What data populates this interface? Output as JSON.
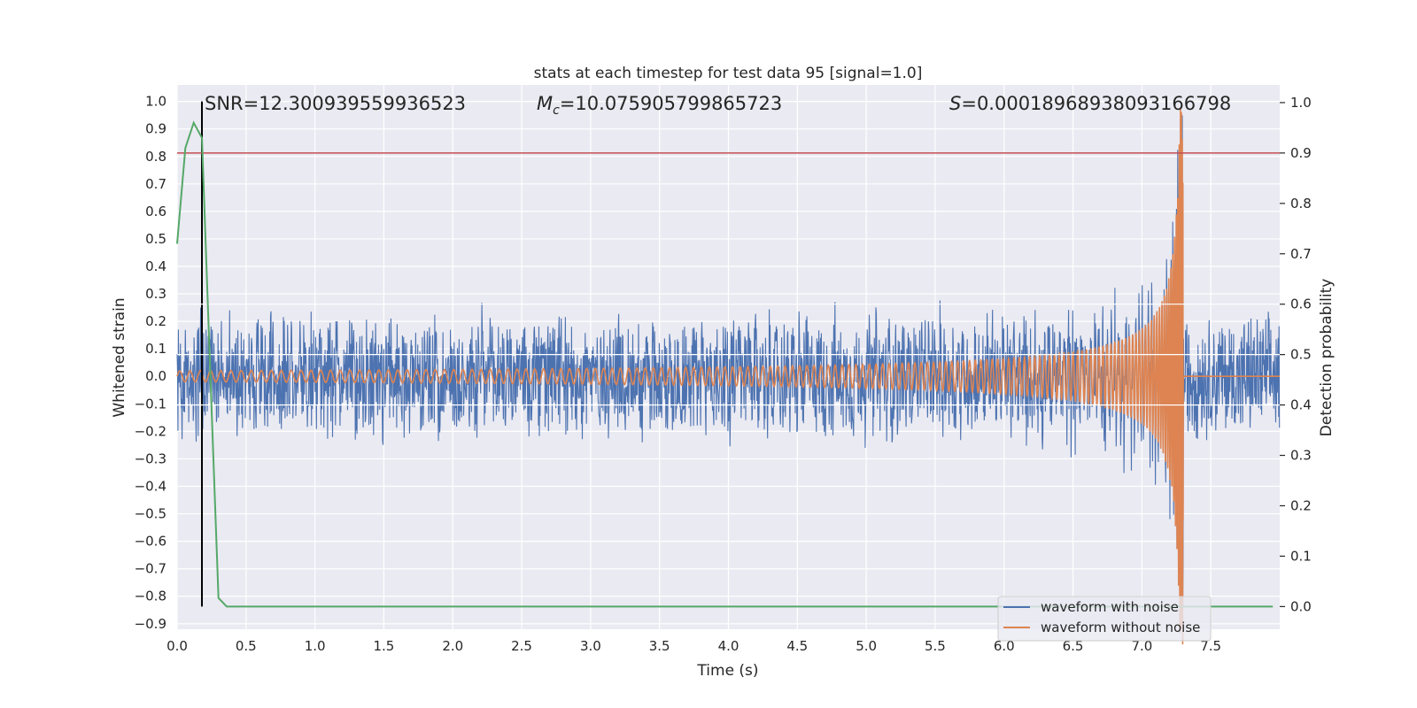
{
  "chart_data": {
    "type": "line",
    "title": "stats at each timestep for test data 95 [signal=1.0]",
    "xlabel": "Time (s)",
    "ylabel": "Whitened strain",
    "y2label": "Detection probability",
    "xlim": [
      0.0,
      8.0
    ],
    "ylim": [
      -0.92,
      1.06
    ],
    "y2lim": [
      -0.045,
      1.035
    ],
    "xticks": [
      "0.0",
      "0.5",
      "1.0",
      "1.5",
      "2.0",
      "2.5",
      "3.0",
      "3.5",
      "4.0",
      "4.5",
      "5.0",
      "5.5",
      "6.0",
      "6.5",
      "7.0",
      "7.5"
    ],
    "xtick_values": [
      0.0,
      0.5,
      1.0,
      1.5,
      2.0,
      2.5,
      3.0,
      3.5,
      4.0,
      4.5,
      5.0,
      5.5,
      6.0,
      6.5,
      7.0,
      7.5
    ],
    "yticks": [
      "1.0",
      "0.9",
      "0.8",
      "0.7",
      "0.6",
      "0.5",
      "0.4",
      "0.3",
      "0.2",
      "0.1",
      "0.0",
      "−0.1",
      "−0.2",
      "−0.3",
      "−0.4",
      "−0.5",
      "−0.6",
      "−0.7",
      "−0.8",
      "−0.9"
    ],
    "ytick_values": [
      1.0,
      0.9,
      0.8,
      0.7,
      0.6,
      0.5,
      0.4,
      0.3,
      0.2,
      0.1,
      0.0,
      -0.1,
      -0.2,
      -0.3,
      -0.4,
      -0.5,
      -0.6,
      -0.7,
      -0.8,
      -0.9
    ],
    "y2ticks": [
      "1.0",
      "0.9",
      "0.8",
      "0.7",
      "0.6",
      "0.5",
      "0.4",
      "0.3",
      "0.2",
      "0.1",
      "0.0"
    ],
    "y2tick_values": [
      1.0,
      0.9,
      0.8,
      0.7,
      0.6,
      0.5,
      0.4,
      0.3,
      0.2,
      0.1,
      0.0
    ],
    "annotations": {
      "snr": "SNR=12.300939559936523",
      "mc_symbol": "M",
      "mc_sub": "c",
      "mc_value": "=10.075905799865723",
      "s_symbol": "S",
      "s_value": "=0.00018968938093166798"
    },
    "threshold_probability": 0.9,
    "vertical_marker_time": 0.18,
    "merger_time": 7.3,
    "series": [
      {
        "name": "waveform with noise",
        "color": "#4c72b0",
        "noise_amplitude": 0.25,
        "description_envelope_peak": 0.98
      },
      {
        "name": "waveform without noise",
        "color": "#dd8452",
        "amplitude_start": 0.02,
        "amplitude_peak": 0.98
      }
    ],
    "detection_probability": {
      "color": "#55a868",
      "x": [
        0.0,
        0.06,
        0.12,
        0.18,
        0.24,
        0.3,
        0.36,
        0.42,
        8.0
      ],
      "y": [
        0.72,
        0.91,
        0.96,
        0.93,
        0.47,
        0.017,
        0.0,
        0.0,
        0.0
      ]
    },
    "threshold_color": "#c44e52",
    "legend": {
      "location": "lower-right",
      "entries": [
        "waveform with noise",
        "waveform without noise"
      ]
    }
  }
}
